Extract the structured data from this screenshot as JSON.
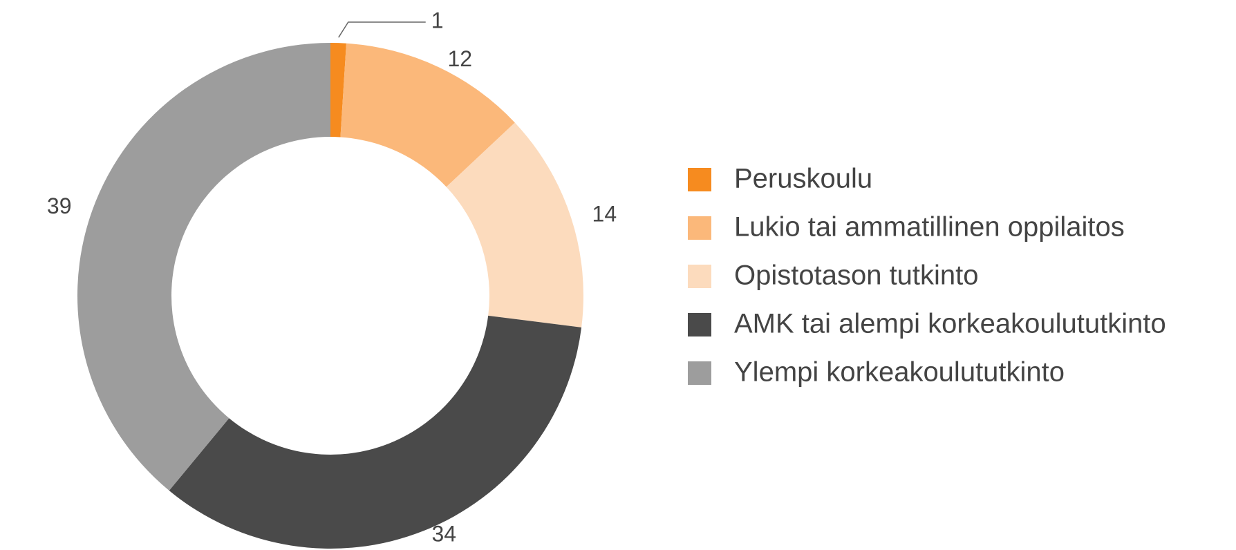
{
  "chart_data": {
    "type": "donut",
    "categories": [
      "Peruskoulu",
      "Lukio tai ammatillinen oppilaitos",
      "Opistotason tutkinto",
      "AMK tai alempi korkeakoulututkinto",
      "Ylempi korkeakoulututkinto"
    ],
    "values": [
      1,
      12,
      14,
      34,
      39
    ],
    "colors": [
      "#f68b1f",
      "#fbb87a",
      "#fcdbbd",
      "#4a4a4a",
      "#9d9d9d"
    ],
    "legend": "right"
  }
}
